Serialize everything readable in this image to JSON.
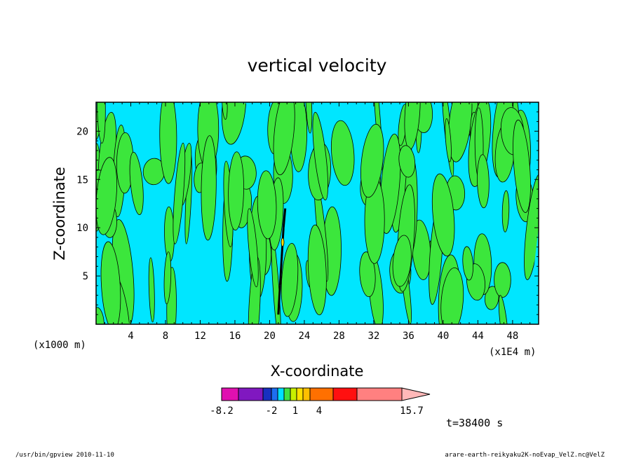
{
  "chart_data": {
    "type": "heatmap",
    "title": "vertical velocity",
    "xlabel": "X-coordinate",
    "ylabel": "Z-coordinate",
    "x_ticks": [
      "4",
      "8",
      "12",
      "16",
      "20",
      "24",
      "28",
      "32",
      "36",
      "40",
      "44",
      "48"
    ],
    "x_tick_values": [
      4,
      8,
      12,
      16,
      20,
      24,
      28,
      32,
      36,
      40,
      44,
      48
    ],
    "y_ticks": [
      "5",
      "10",
      "15",
      "20"
    ],
    "y_tick_values": [
      5,
      10,
      15,
      20
    ],
    "xlim": [
      0,
      51
    ],
    "ylim": [
      0,
      23
    ],
    "x_unit_left": "(x1000 m)",
    "x_unit_right": "(x1E4 m)",
    "colorbar": {
      "labels": [
        "-8.2",
        "-2",
        "1",
        "4",
        "15.7"
      ],
      "colors": [
        "#e010b0",
        "#8018c0",
        "#1830c0",
        "#1e6ef0",
        "#00e0ff",
        "#40e040",
        "#c8f000",
        "#ffe000",
        "#ffc000",
        "#ff7000",
        "#ff1010",
        "#ff8080",
        "#ffb8b8"
      ]
    },
    "field_colors": {
      "background": "#00e6ff",
      "positive": "#3ce63c",
      "strong": "#ffe000",
      "contour": "#000000"
    }
  },
  "time_label": "t=38400 s",
  "footer": {
    "left": "/usr/bin/gpview   2010-11-10",
    "right": "arare-earth-reikyaku2K-noEvap_VelZ.nc@VelZ"
  }
}
